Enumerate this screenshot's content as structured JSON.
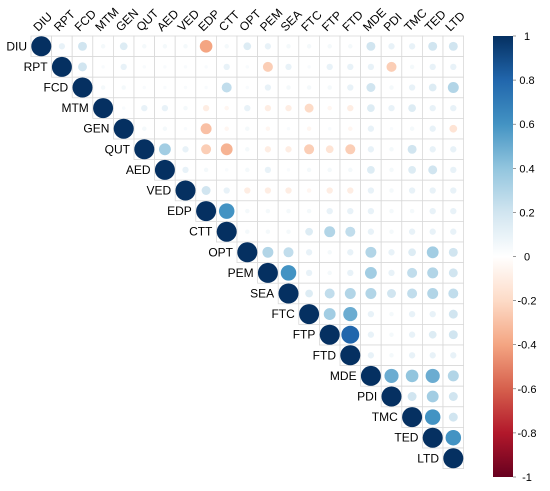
{
  "chart_data": {
    "type": "heatmap",
    "subtype": "correlation-upper-circles",
    "variables": [
      "DIU",
      "RPT",
      "FCD",
      "MTM",
      "GEN",
      "QUT",
      "AED",
      "VED",
      "EDP",
      "CTT",
      "OPT",
      "PEM",
      "SEA",
      "FTC",
      "FTP",
      "FTD",
      "MDE",
      "PDI",
      "TMC",
      "TED",
      "LTD"
    ],
    "colorbar": {
      "min": -1,
      "max": 1,
      "ticks": [
        "1",
        "0.8",
        "0.6",
        "0.4",
        "0.2",
        "0",
        "-0.2",
        "-0.4",
        "-0.6",
        "-0.8",
        "-1"
      ],
      "tick_values": [
        1,
        0.8,
        0.6,
        0.4,
        0.2,
        0,
        -0.2,
        -0.4,
        -0.6,
        -0.8,
        -1
      ],
      "colors": [
        "#67001F",
        "#B2182B",
        "#D6604D",
        "#F4A582",
        "#FDDBC7",
        "#FFFFFF",
        "#D1E5F0",
        "#92C5DE",
        "#4393C3",
        "#2166AC",
        "#053061"
      ]
    },
    "correlations": [
      {
        "r": "DIU",
        "c": "RPT",
        "v": 0.1
      },
      {
        "r": "DIU",
        "c": "FCD",
        "v": 0.2
      },
      {
        "r": "DIU",
        "c": "MTM",
        "v": 0.05
      },
      {
        "r": "DIU",
        "c": "GEN",
        "v": 0.15
      },
      {
        "r": "DIU",
        "c": "QUT",
        "v": 0.05
      },
      {
        "r": "DIU",
        "c": "AED",
        "v": 0.05
      },
      {
        "r": "DIU",
        "c": "VED",
        "v": 0.05
      },
      {
        "r": "DIU",
        "c": "EDP",
        "v": -0.4
      },
      {
        "r": "DIU",
        "c": "CTT",
        "v": 0.05
      },
      {
        "r": "DIU",
        "c": "OPT",
        "v": 0.15
      },
      {
        "r": "DIU",
        "c": "PEM",
        "v": 0.1
      },
      {
        "r": "DIU",
        "c": "SEA",
        "v": 0.05
      },
      {
        "r": "DIU",
        "c": "FTC",
        "v": 0.05
      },
      {
        "r": "DIU",
        "c": "FTP",
        "v": 0.05
      },
      {
        "r": "DIU",
        "c": "FTD",
        "v": 0.05
      },
      {
        "r": "DIU",
        "c": "MDE",
        "v": 0.2
      },
      {
        "r": "DIU",
        "c": "PDI",
        "v": 0.1
      },
      {
        "r": "DIU",
        "c": "TMC",
        "v": 0.1
      },
      {
        "r": "DIU",
        "c": "TED",
        "v": 0.2
      },
      {
        "r": "DIU",
        "c": "LTD",
        "v": 0.2
      },
      {
        "r": "RPT",
        "c": "FCD",
        "v": 0.2
      },
      {
        "r": "RPT",
        "c": "GEN",
        "v": 0.1
      },
      {
        "r": "RPT",
        "c": "CTT",
        "v": 0.1
      },
      {
        "r": "RPT",
        "c": "PEM",
        "v": -0.25
      },
      {
        "r": "RPT",
        "c": "SEA",
        "v": 0.1
      },
      {
        "r": "RPT",
        "c": "FTP",
        "v": 0.1
      },
      {
        "r": "RPT",
        "c": "FTD",
        "v": 0.1
      },
      {
        "r": "RPT",
        "c": "MDE",
        "v": 0.1
      },
      {
        "r": "RPT",
        "c": "PDI",
        "v": -0.25
      },
      {
        "r": "RPT",
        "c": "TMC",
        "v": 0.05
      },
      {
        "r": "RPT",
        "c": "TED",
        "v": 0.1
      },
      {
        "r": "RPT",
        "c": "LTD",
        "v": 0.1
      },
      {
        "r": "FCD",
        "c": "MTM",
        "v": 0.05
      },
      {
        "r": "FCD",
        "c": "GEN",
        "v": 0.05
      },
      {
        "r": "FCD",
        "c": "CTT",
        "v": 0.25
      },
      {
        "r": "FCD",
        "c": "PEM",
        "v": 0.1
      },
      {
        "r": "FCD",
        "c": "SEA",
        "v": 0.05
      },
      {
        "r": "FCD",
        "c": "FTC",
        "v": 0.05
      },
      {
        "r": "FCD",
        "c": "FTP",
        "v": 0.05
      },
      {
        "r": "FCD",
        "c": "FTD",
        "v": 0.1
      },
      {
        "r": "FCD",
        "c": "MDE",
        "v": 0.2
      },
      {
        "r": "FCD",
        "c": "PDI",
        "v": 0.05
      },
      {
        "r": "FCD",
        "c": "TMC",
        "v": 0.1
      },
      {
        "r": "FCD",
        "c": "TED",
        "v": 0.15
      },
      {
        "r": "FCD",
        "c": "LTD",
        "v": 0.3
      },
      {
        "r": "MTM",
        "c": "QUT",
        "v": 0.1
      },
      {
        "r": "MTM",
        "c": "AED",
        "v": 0.1
      },
      {
        "r": "MTM",
        "c": "VED",
        "v": 0.05
      },
      {
        "r": "MTM",
        "c": "EDP",
        "v": -0.1
      },
      {
        "r": "MTM",
        "c": "CTT",
        "v": -0.05
      },
      {
        "r": "MTM",
        "c": "OPT",
        "v": 0.1
      },
      {
        "r": "MTM",
        "c": "PEM",
        "v": -0.1
      },
      {
        "r": "MTM",
        "c": "SEA",
        "v": -0.1
      },
      {
        "r": "MTM",
        "c": "FTC",
        "v": -0.2
      },
      {
        "r": "MTM",
        "c": "FTP",
        "v": -0.05
      },
      {
        "r": "MTM",
        "c": "FTD",
        "v": -0.1
      },
      {
        "r": "MTM",
        "c": "MDE",
        "v": 0.15
      },
      {
        "r": "MTM",
        "c": "PDI",
        "v": 0.1
      },
      {
        "r": "MTM",
        "c": "TMC",
        "v": 0.15
      },
      {
        "r": "MTM",
        "c": "TED",
        "v": 0.1
      },
      {
        "r": "MTM",
        "c": "LTD",
        "v": 0.1
      },
      {
        "r": "GEN",
        "c": "QUT",
        "v": 0.05
      },
      {
        "r": "GEN",
        "c": "AED",
        "v": 0.05
      },
      {
        "r": "GEN",
        "c": "EDP",
        "v": -0.3
      },
      {
        "r": "GEN",
        "c": "CTT",
        "v": -0.05
      },
      {
        "r": "GEN",
        "c": "OPT",
        "v": 0.05
      },
      {
        "r": "GEN",
        "c": "PEM",
        "v": -0.05
      },
      {
        "r": "GEN",
        "c": "FTC",
        "v": -0.05
      },
      {
        "r": "GEN",
        "c": "FTD",
        "v": -0.05
      },
      {
        "r": "GEN",
        "c": "MDE",
        "v": 0.1
      },
      {
        "r": "GEN",
        "c": "TMC",
        "v": 0.05
      },
      {
        "r": "GEN",
        "c": "TED",
        "v": 0.1
      },
      {
        "r": "GEN",
        "c": "LTD",
        "v": -0.15
      },
      {
        "r": "QUT",
        "c": "AED",
        "v": 0.35
      },
      {
        "r": "QUT",
        "c": "VED",
        "v": 0.1
      },
      {
        "r": "QUT",
        "c": "EDP",
        "v": -0.25
      },
      {
        "r": "QUT",
        "c": "CTT",
        "v": -0.35
      },
      {
        "r": "QUT",
        "c": "OPT",
        "v": 0.05
      },
      {
        "r": "QUT",
        "c": "PEM",
        "v": -0.1
      },
      {
        "r": "QUT",
        "c": "SEA",
        "v": -0.1
      },
      {
        "r": "QUT",
        "c": "FTC",
        "v": -0.25
      },
      {
        "r": "QUT",
        "c": "FTP",
        "v": -0.15
      },
      {
        "r": "QUT",
        "c": "FTD",
        "v": -0.25
      },
      {
        "r": "QUT",
        "c": "MDE",
        "v": 0.1
      },
      {
        "r": "QUT",
        "c": "PDI",
        "v": 0.05
      },
      {
        "r": "QUT",
        "c": "TMC",
        "v": 0.2
      },
      {
        "r": "QUT",
        "c": "TED",
        "v": 0.1
      },
      {
        "r": "QUT",
        "c": "LTD",
        "v": 0.1
      },
      {
        "r": "AED",
        "c": "VED",
        "v": 0.1
      },
      {
        "r": "AED",
        "c": "EDP",
        "v": 0.05
      },
      {
        "r": "AED",
        "c": "OPT",
        "v": 0.05
      },
      {
        "r": "AED",
        "c": "PEM",
        "v": 0.1
      },
      {
        "r": "AED",
        "c": "FTC",
        "v": 0.05
      },
      {
        "r": "AED",
        "c": "FTP",
        "v": 0.05
      },
      {
        "r": "AED",
        "c": "FTD",
        "v": 0.05
      },
      {
        "r": "AED",
        "c": "MDE",
        "v": 0.15
      },
      {
        "r": "AED",
        "c": "PDI",
        "v": 0.05
      },
      {
        "r": "AED",
        "c": "TMC",
        "v": 0.15
      },
      {
        "r": "AED",
        "c": "TED",
        "v": 0.2
      },
      {
        "r": "AED",
        "c": "LTD",
        "v": 0.1
      },
      {
        "r": "VED",
        "c": "EDP",
        "v": 0.2
      },
      {
        "r": "VED",
        "c": "CTT",
        "v": 0.1
      },
      {
        "r": "VED",
        "c": "OPT",
        "v": -0.1
      },
      {
        "r": "VED",
        "c": "PEM",
        "v": -0.1
      },
      {
        "r": "VED",
        "c": "SEA",
        "v": -0.1
      },
      {
        "r": "VED",
        "c": "FTC",
        "v": -0.05
      },
      {
        "r": "VED",
        "c": "FTP",
        "v": -0.1
      },
      {
        "r": "VED",
        "c": "FTD",
        "v": -0.1
      },
      {
        "r": "VED",
        "c": "MDE",
        "v": 0.1
      },
      {
        "r": "VED",
        "c": "PDI",
        "v": 0.05
      },
      {
        "r": "VED",
        "c": "TMC",
        "v": 0.1
      },
      {
        "r": "VED",
        "c": "TED",
        "v": 0.1
      },
      {
        "r": "VED",
        "c": "LTD",
        "v": 0.1
      },
      {
        "r": "EDP",
        "c": "CTT",
        "v": 0.6
      },
      {
        "r": "EDP",
        "c": "OPT",
        "v": 0.05
      },
      {
        "r": "EDP",
        "c": "PEM",
        "v": 0.05
      },
      {
        "r": "EDP",
        "c": "SEA",
        "v": 0.05
      },
      {
        "r": "EDP",
        "c": "FTC",
        "v": 0.05
      },
      {
        "r": "EDP",
        "c": "FTP",
        "v": 0.1
      },
      {
        "r": "EDP",
        "c": "FTD",
        "v": 0.1
      },
      {
        "r": "EDP",
        "c": "MDE",
        "v": 0.1
      },
      {
        "r": "EDP",
        "c": "PDI",
        "v": 0.05
      },
      {
        "r": "EDP",
        "c": "TMC",
        "v": 0.05
      },
      {
        "r": "EDP",
        "c": "TED",
        "v": 0.1
      },
      {
        "r": "EDP",
        "c": "LTD",
        "v": 0.1
      },
      {
        "r": "CTT",
        "c": "OPT",
        "v": 0.05
      },
      {
        "r": "CTT",
        "c": "PEM",
        "v": 0.05
      },
      {
        "r": "CTT",
        "c": "SEA",
        "v": 0.05
      },
      {
        "r": "CTT",
        "c": "FTC",
        "v": 0.15
      },
      {
        "r": "CTT",
        "c": "FTP",
        "v": 0.3
      },
      {
        "r": "CTT",
        "c": "FTD",
        "v": 0.25
      },
      {
        "r": "CTT",
        "c": "MDE",
        "v": 0.1
      },
      {
        "r": "CTT",
        "c": "PDI",
        "v": 0.05
      },
      {
        "r": "CTT",
        "c": "TMC",
        "v": 0.1
      },
      {
        "r": "CTT",
        "c": "TED",
        "v": 0.1
      },
      {
        "r": "CTT",
        "c": "LTD",
        "v": 0.1
      },
      {
        "r": "OPT",
        "c": "PEM",
        "v": 0.3
      },
      {
        "r": "OPT",
        "c": "SEA",
        "v": 0.25
      },
      {
        "r": "OPT",
        "c": "FTC",
        "v": 0.1
      },
      {
        "r": "OPT",
        "c": "FTP",
        "v": 0.05
      },
      {
        "r": "OPT",
        "c": "FTD",
        "v": 0.1
      },
      {
        "r": "OPT",
        "c": "MDE",
        "v": 0.3
      },
      {
        "r": "OPT",
        "c": "PDI",
        "v": 0.1
      },
      {
        "r": "OPT",
        "c": "TMC",
        "v": 0.15
      },
      {
        "r": "OPT",
        "c": "TED",
        "v": 0.35
      },
      {
        "r": "OPT",
        "c": "LTD",
        "v": 0.2
      },
      {
        "r": "PEM",
        "c": "SEA",
        "v": 0.6
      },
      {
        "r": "PEM",
        "c": "FTC",
        "v": 0.1
      },
      {
        "r": "PEM",
        "c": "FTP",
        "v": 0.05
      },
      {
        "r": "PEM",
        "c": "FTD",
        "v": 0.1
      },
      {
        "r": "PEM",
        "c": "MDE",
        "v": 0.35
      },
      {
        "r": "PEM",
        "c": "PDI",
        "v": 0.1
      },
      {
        "r": "PEM",
        "c": "TMC",
        "v": 0.25
      },
      {
        "r": "PEM",
        "c": "TED",
        "v": 0.3
      },
      {
        "r": "PEM",
        "c": "LTD",
        "v": 0.2
      },
      {
        "r": "SEA",
        "c": "FTC",
        "v": 0.15
      },
      {
        "r": "SEA",
        "c": "FTP",
        "v": 0.25
      },
      {
        "r": "SEA",
        "c": "FTD",
        "v": 0.3
      },
      {
        "r": "SEA",
        "c": "MDE",
        "v": 0.3
      },
      {
        "r": "SEA",
        "c": "PDI",
        "v": 0.2
      },
      {
        "r": "SEA",
        "c": "TMC",
        "v": 0.25
      },
      {
        "r": "SEA",
        "c": "TED",
        "v": 0.3
      },
      {
        "r": "SEA",
        "c": "LTD",
        "v": 0.25
      },
      {
        "r": "FTC",
        "c": "FTP",
        "v": 0.35
      },
      {
        "r": "FTC",
        "c": "FTD",
        "v": 0.5
      },
      {
        "r": "FTC",
        "c": "MDE",
        "v": 0.1
      },
      {
        "r": "FTC",
        "c": "PDI",
        "v": 0.05
      },
      {
        "r": "FTC",
        "c": "TMC",
        "v": 0.1
      },
      {
        "r": "FTC",
        "c": "TED",
        "v": 0.1
      },
      {
        "r": "FTC",
        "c": "LTD",
        "v": 0.2
      },
      {
        "r": "FTP",
        "c": "FTD",
        "v": 0.8
      },
      {
        "r": "FTP",
        "c": "MDE",
        "v": 0.1
      },
      {
        "r": "FTP",
        "c": "PDI",
        "v": 0.05
      },
      {
        "r": "FTP",
        "c": "TMC",
        "v": 0.1
      },
      {
        "r": "FTP",
        "c": "TED",
        "v": 0.15
      },
      {
        "r": "FTP",
        "c": "LTD",
        "v": 0.2
      },
      {
        "r": "FTD",
        "c": "MDE",
        "v": 0.1
      },
      {
        "r": "FTD",
        "c": "PDI",
        "v": 0.05
      },
      {
        "r": "FTD",
        "c": "TMC",
        "v": 0.1
      },
      {
        "r": "FTD",
        "c": "TED",
        "v": 0.1
      },
      {
        "r": "FTD",
        "c": "LTD",
        "v": 0.1
      },
      {
        "r": "MDE",
        "c": "PDI",
        "v": 0.5
      },
      {
        "r": "MDE",
        "c": "TMC",
        "v": 0.4
      },
      {
        "r": "MDE",
        "c": "TED",
        "v": 0.5
      },
      {
        "r": "MDE",
        "c": "LTD",
        "v": 0.3
      },
      {
        "r": "PDI",
        "c": "TMC",
        "v": 0.2
      },
      {
        "r": "PDI",
        "c": "TED",
        "v": 0.35
      },
      {
        "r": "PDI",
        "c": "LTD",
        "v": 0.2
      },
      {
        "r": "TMC",
        "c": "TED",
        "v": 0.6
      },
      {
        "r": "TMC",
        "c": "LTD",
        "v": 0.2
      },
      {
        "r": "TED",
        "c": "LTD",
        "v": 0.6
      }
    ]
  }
}
